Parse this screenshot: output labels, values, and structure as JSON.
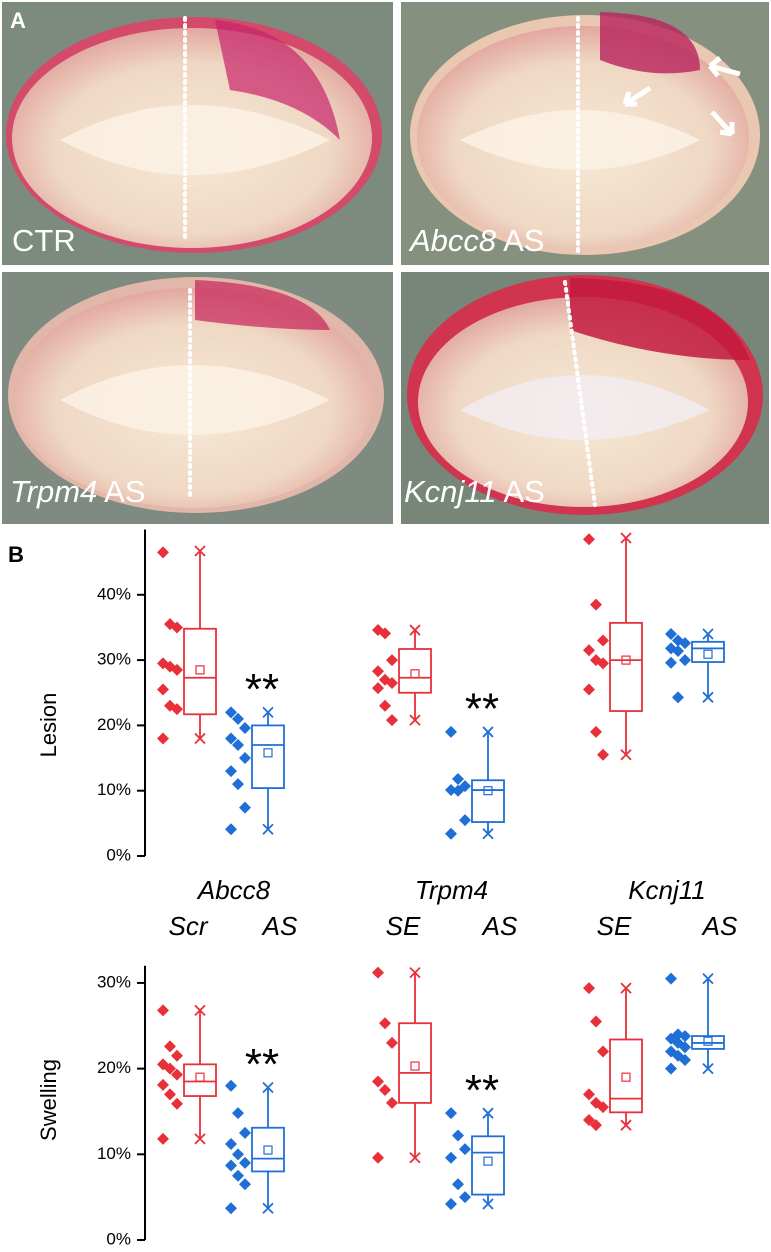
{
  "panel_a": {
    "label": "A",
    "images": [
      {
        "text": "CTR"
      },
      {
        "gene": "Abcc8",
        "suffix": "AS"
      },
      {
        "gene": "Trpm4",
        "suffix": "AS"
      },
      {
        "gene": "Kcnj11",
        "suffix": "AS"
      }
    ]
  },
  "panel_b": {
    "label": "B",
    "x_labels": [
      {
        "gene": "Abcc8",
        "conditions": [
          "Scr",
          "AS"
        ]
      },
      {
        "gene": "Trpm4",
        "conditions": [
          "SE",
          "AS"
        ]
      },
      {
        "gene": "Kcnj11",
        "conditions": [
          "SE",
          "AS"
        ]
      }
    ]
  },
  "chart_data": [
    {
      "type": "box",
      "y_label": "Lesion",
      "ylim": [
        0,
        50
      ],
      "yticks": [
        {
          "value": 0,
          "label": "0%"
        },
        {
          "value": 10,
          "label": "10%"
        },
        {
          "value": 20,
          "label": "20%"
        },
        {
          "value": 30,
          "label": "30%"
        },
        {
          "value": 40,
          "label": "40%"
        }
      ],
      "groups": [
        {
          "series": [
            {
              "color": "#e8303a",
              "points": [
                46.5,
                35.5,
                35,
                29.5,
                29,
                28.5,
                25.5,
                23,
                22.5,
                18
              ],
              "whisker_low": 18,
              "q1": 21.7,
              "median": 27.3,
              "q3": 34.8,
              "whisker_high": 46.7,
              "mean": 28.5
            },
            {
              "color": "#1f6fd6",
              "points": [
                22,
                21,
                19.6,
                18,
                17,
                15,
                13,
                11,
                7.4,
                4.1
              ],
              "whisker_low": 4.1,
              "q1": 10.4,
              "median": 17,
              "q3": 20,
              "whisker_high": 22,
              "mean": 15.8,
              "significance": "**"
            }
          ]
        },
        {
          "series": [
            {
              "color": "#e8303a",
              "points": [
                34.6,
                34.1,
                30,
                28.3,
                27,
                26.5,
                25.7,
                23,
                20.8
              ],
              "whisker_low": 20.8,
              "q1": 25,
              "median": 27.3,
              "q3": 31.7,
              "whisker_high": 34.6,
              "mean": 27.9
            },
            {
              "color": "#1f6fd6",
              "points": [
                19,
                11.8,
                10.7,
                10.1,
                10,
                5.5,
                3.4
              ],
              "whisker_low": 3.4,
              "q1": 5.2,
              "median": 10.1,
              "q3": 11.6,
              "whisker_high": 19,
              "mean": 10,
              "significance": "**"
            }
          ]
        },
        {
          "series": [
            {
              "color": "#e8303a",
              "points": [
                48.5,
                38.5,
                33,
                31.5,
                30,
                29.5,
                25.5,
                19,
                15.5
              ],
              "whisker_low": 15.5,
              "q1": 22.2,
              "median": 30,
              "q3": 35.7,
              "whisker_high": 48.7,
              "mean": 30
            },
            {
              "color": "#1f6fd6",
              "points": [
                34,
                33,
                32.6,
                31.8,
                31.4,
                30,
                29.6,
                24.3
              ],
              "whisker_low": 24.3,
              "q1": 29.7,
              "median": 31.8,
              "q3": 32.8,
              "whisker_high": 34,
              "mean": 30.9
            }
          ]
        }
      ]
    },
    {
      "type": "box",
      "y_label": "Swelling",
      "ylim": [
        0,
        32
      ],
      "yticks": [
        {
          "value": 0,
          "label": "0%"
        },
        {
          "value": 10,
          "label": "10%"
        },
        {
          "value": 20,
          "label": "20%"
        },
        {
          "value": 30,
          "label": "30%"
        }
      ],
      "groups": [
        {
          "series": [
            {
              "color": "#e8303a",
              "points": [
                26.8,
                22.6,
                21.5,
                20.5,
                20,
                19.3,
                18.1,
                17,
                15.9,
                11.8
              ],
              "whisker_low": 11.8,
              "q1": 16.8,
              "median": 18.5,
              "q3": 20.5,
              "whisker_high": 26.8,
              "mean": 19
            },
            {
              "color": "#1f6fd6",
              "points": [
                18,
                14.8,
                12.5,
                11.2,
                10,
                9,
                8.7,
                7.5,
                6.5,
                3.7
              ],
              "whisker_low": 3.7,
              "q1": 8,
              "median": 9.5,
              "q3": 13.1,
              "whisker_high": 17.8,
              "mean": 10.5,
              "significance": "**"
            }
          ]
        },
        {
          "series": [
            {
              "color": "#e8303a",
              "points": [
                31.2,
                25.3,
                23,
                18.5,
                17.5,
                16,
                9.6
              ],
              "whisker_low": 9.6,
              "q1": 16,
              "median": 19.5,
              "q3": 25.3,
              "whisker_high": 31.2,
              "mean": 20.3
            },
            {
              "color": "#1f6fd6",
              "points": [
                14.8,
                12.2,
                10.6,
                9.6,
                6.5,
                5,
                4.2
              ],
              "whisker_low": 4.2,
              "q1": 5.3,
              "median": 10.2,
              "q3": 12.1,
              "whisker_high": 14.8,
              "mean": 9.2,
              "significance": "**"
            }
          ]
        },
        {
          "series": [
            {
              "color": "#e8303a",
              "points": [
                29.4,
                25.5,
                22,
                17,
                16,
                15.5,
                14,
                13.4
              ],
              "whisker_low": 13.4,
              "q1": 14.9,
              "median": 16.5,
              "q3": 23.4,
              "whisker_high": 29.4,
              "mean": 19
            },
            {
              "color": "#1f6fd6",
              "points": [
                30.5,
                24,
                23.8,
                23.5,
                23,
                22.5,
                22,
                21.5,
                21,
                20
              ],
              "whisker_low": 20,
              "q1": 22.3,
              "median": 23,
              "q3": 23.8,
              "whisker_high": 30.5,
              "mean": 23.2
            }
          ]
        }
      ]
    }
  ]
}
